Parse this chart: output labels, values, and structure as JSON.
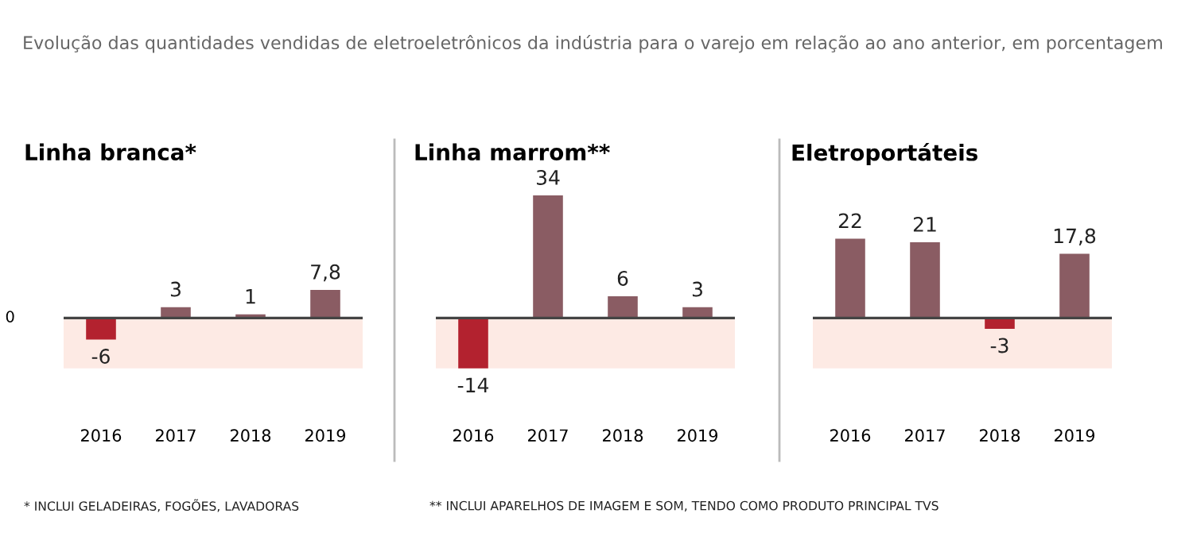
{
  "chart_data": [
    {
      "type": "bar",
      "title": "Linha branca*",
      "subtitle": "Evolução das quantidades vendidas de eletroeletrônicos da indústria para o varejo em relação ao ano anterior, em porcentagem",
      "categories": [
        "2016",
        "2017",
        "2018",
        "2019"
      ],
      "values": [
        -6,
        3,
        1,
        7.8
      ],
      "colors": [
        "#b3222f",
        "#8a5c63",
        "#8a5c63",
        "#8a5c63"
      ],
      "value_labels": [
        "-6",
        "3",
        "1",
        "7,8"
      ],
      "grid": false,
      "legend": false,
      "bands": [
        {
          "axis": "y",
          "from": -14,
          "to": 0,
          "color": "#fdeae4"
        }
      ],
      "annotations": [
        "0",
        "* INCLUI GELADEIRAS, FOGÕES, LAVADORAS"
      ]
    },
    {
      "type": "bar",
      "title": "Linha marrom**",
      "categories": [
        "2016",
        "2017",
        "2018",
        "2019"
      ],
      "values": [
        -14,
        34,
        6,
        3
      ],
      "colors": [
        "#b3222f",
        "#8a5c63",
        "#8a5c63",
        "#8a5c63"
      ],
      "value_labels": [
        "-14",
        "34",
        "6",
        "3"
      ],
      "grid": false,
      "legend": false,
      "bands": [
        {
          "axis": "y",
          "from": -14,
          "to": 0,
          "color": "#fdeae4"
        }
      ],
      "annotations": [
        "** INCLUI APARELHOS DE IMAGEM E SOM, TENDO COMO PRODUTO PRINCIPAL TVS"
      ]
    },
    {
      "type": "bar",
      "title": "Eletroportáteis",
      "categories": [
        "2016",
        "2017",
        "2018",
        "2019"
      ],
      "values": [
        22,
        21,
        -3,
        17.8
      ],
      "colors": [
        "#8a5c63",
        "#8a5c63",
        "#b3222f",
        "#8a5c63"
      ],
      "value_labels": [
        "22",
        "21",
        "-3",
        "17,8"
      ],
      "grid": false,
      "legend": false,
      "bands": [
        {
          "axis": "y",
          "from": -14,
          "to": 0,
          "color": "#fdeae4"
        }
      ]
    }
  ]
}
